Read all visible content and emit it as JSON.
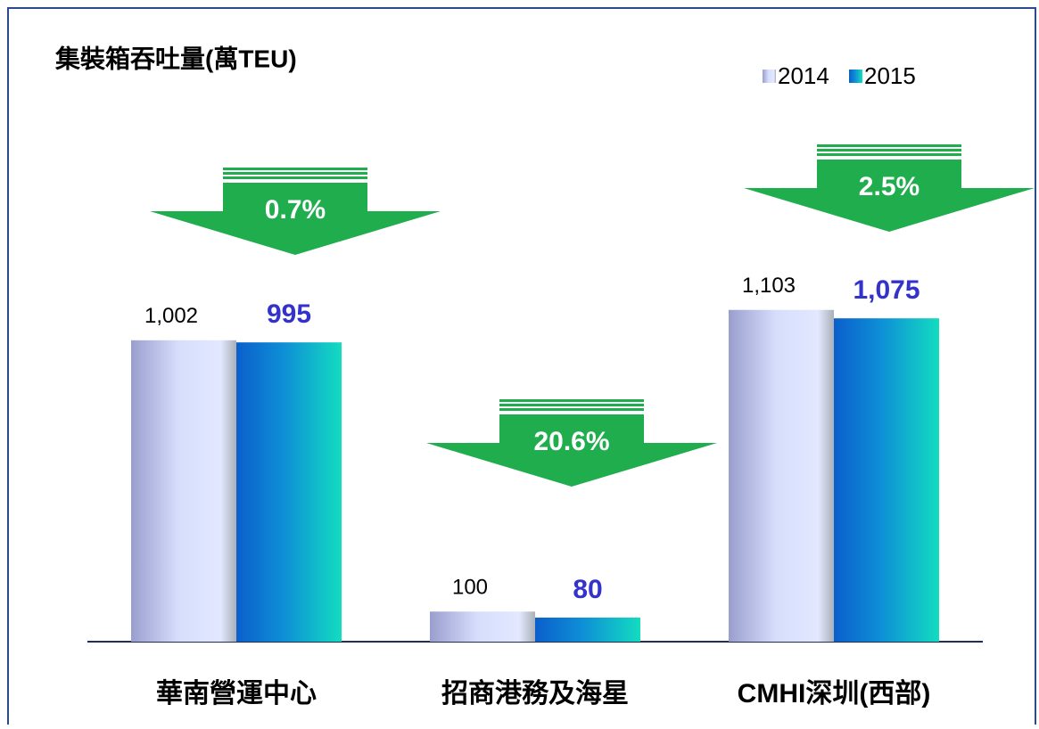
{
  "chart_data": {
    "type": "bar",
    "title": "集裝箱吞吐量(萬TEU)",
    "categories": [
      "華南營運中心",
      "招商港務及海星",
      "CMHI深圳(西部)"
    ],
    "series": [
      {
        "name": "2014",
        "color": "#d6defc",
        "values": [
          1002,
          100,
          1103
        ],
        "value_labels": [
          "1,002",
          "100",
          "1,103"
        ]
      },
      {
        "name": "2015",
        "color": "#0e8fd6",
        "values": [
          995,
          80,
          1075
        ],
        "value_labels": [
          "995",
          "80",
          "1,075"
        ]
      }
    ],
    "annotations": [
      "0.7%",
      "20.6%",
      "2.5%"
    ],
    "ylim": [
      0,
      1200
    ]
  }
}
